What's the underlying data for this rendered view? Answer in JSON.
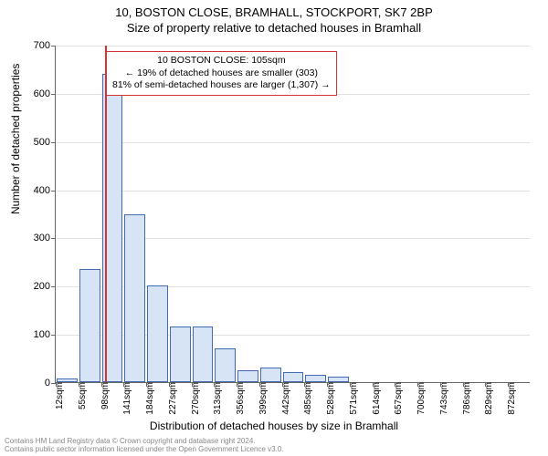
{
  "title_line1": "10, BOSTON CLOSE, BRAMHALL, STOCKPORT, SK7 2BP",
  "title_line2": "Size of property relative to detached houses in Bramhall",
  "ylabel": "Number of detached properties",
  "xlabel": "Distribution of detached houses by size in Bramhall",
  "chart": {
    "type": "bar",
    "ylim": [
      0,
      700
    ],
    "ytick_step": 100,
    "x_start": 12,
    "x_bin_width": 43,
    "n_bins": 21,
    "values": [
      8,
      235,
      640,
      348,
      200,
      115,
      115,
      70,
      25,
      30,
      20,
      15,
      12,
      0,
      0,
      0,
      0,
      0,
      0,
      0,
      0
    ],
    "bar_fill": "#d7e4f5",
    "bar_border": "#426bb3",
    "grid_color": "#e0e0e0",
    "axis_color": "#666666",
    "background": "#ffffff",
    "marker_value": 105,
    "marker_color": "#d33333"
  },
  "annotation": {
    "line1": "10 BOSTON CLOSE: 105sqm",
    "line2": "← 19% of detached houses are smaller (303)",
    "line3": "81% of semi-detached houses are larger (1,307) →",
    "border_color": "#d33333"
  },
  "footer_line1": "Contains HM Land Registry data © Crown copyright and database right 2024.",
  "footer_line2": "Contains public sector information licensed under the Open Government Licence v3.0."
}
